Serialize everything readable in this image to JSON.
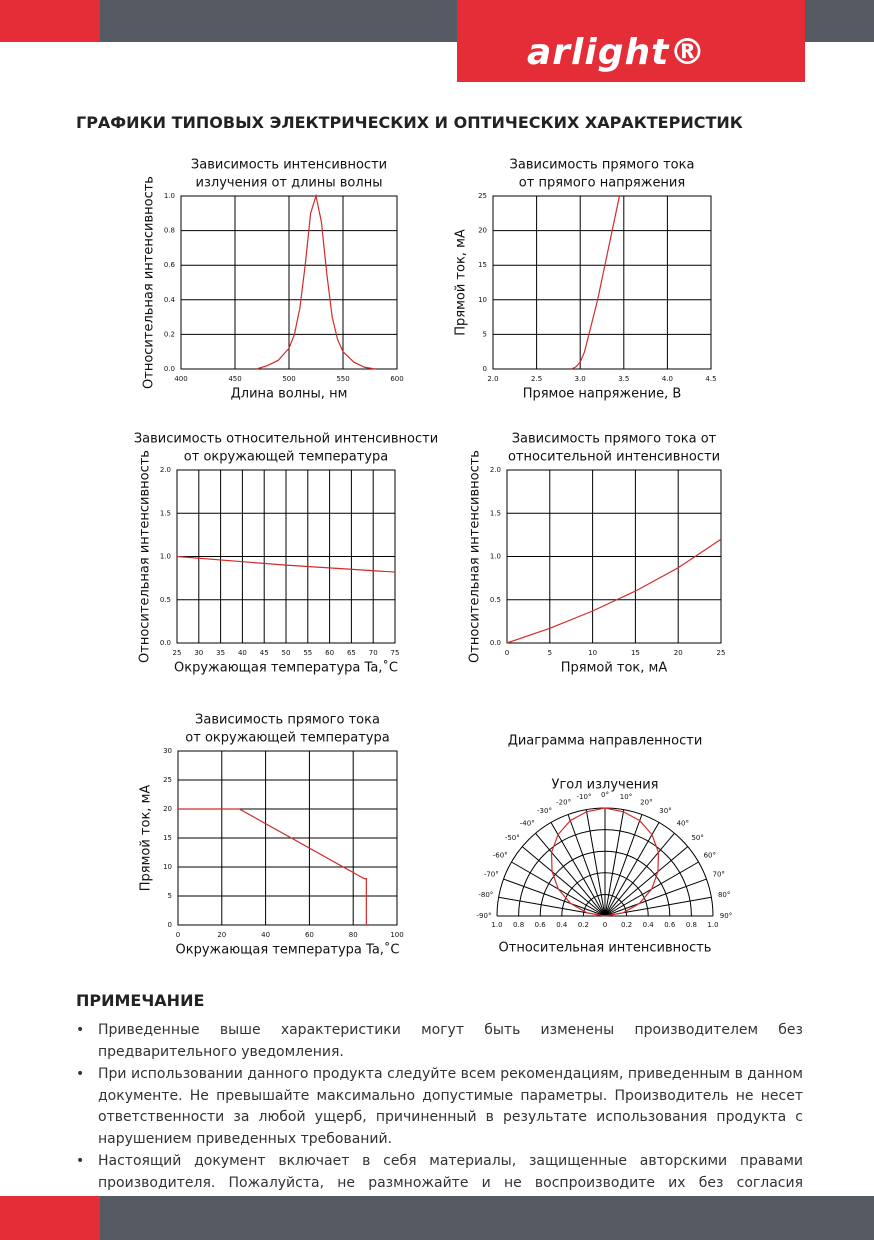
{
  "header": {
    "logo": "arlight®"
  },
  "section_title": "ГРАФИКИ ТИПОВЫХ ЭЛЕКТРИЧЕСКИХ И ОПТИЧЕСКИХ ХАРАКТЕРИСТИК",
  "chart_data": [
    {
      "type": "line",
      "title": [
        "Зависимость интенсивности",
        "излучения от длины волны"
      ],
      "x_label": "Длина волны, нм",
      "y_label": "Относительная интенсивность",
      "x": [
        470,
        480,
        490,
        500,
        505,
        510,
        515,
        520,
        525,
        530,
        535,
        540,
        545,
        550,
        560,
        570,
        580
      ],
      "series": [
        {
          "color": "#d42a2a",
          "values": [
            0,
            0.02,
            0.05,
            0.12,
            0.2,
            0.35,
            0.6,
            0.9,
            1.0,
            0.85,
            0.55,
            0.3,
            0.17,
            0.1,
            0.04,
            0.01,
            0
          ]
        }
      ],
      "xlim": [
        400,
        600
      ],
      "xticks": [
        400,
        450,
        500,
        550,
        600
      ],
      "ylim": [
        0,
        1
      ],
      "yticks": [
        {
          "value": 0,
          "label": "0.0"
        },
        0.2,
        0.4,
        0.6,
        0.8,
        {
          "value": 1,
          "label": "1.0"
        }
      ],
      "grid": true
    },
    {
      "type": "line",
      "title": [
        "Зависимость прямого тока",
        "от прямого напряжения"
      ],
      "x_label": "Прямое напряжение, В",
      "y_label": "Прямой ток, мА",
      "x": [
        2.9,
        2.95,
        3.0,
        3.05,
        3.1,
        3.2,
        3.3,
        3.4,
        3.45
      ],
      "series": [
        {
          "color": "#d42a2a",
          "values": [
            0,
            0.3,
            1,
            2.5,
            5,
            10,
            16,
            22,
            25
          ]
        }
      ],
      "xlim": [
        2,
        4.5
      ],
      "xticks": [
        {
          "value": 2,
          "label": "2.0"
        },
        2.5,
        {
          "value": 3,
          "label": "3.0"
        },
        3.5,
        {
          "value": 4,
          "label": "4.0"
        },
        4.5
      ],
      "ylim": [
        0,
        25
      ],
      "yticks": [
        0,
        5,
        10,
        15,
        20,
        25
      ],
      "grid": true
    },
    {
      "type": "line",
      "title": [
        "Зависимость относительной интенсивности",
        "от окружающей температура"
      ],
      "x_label": "Окружающая температура Ta,˚C",
      "y_label": "Относительная интенсивность",
      "x": [
        25,
        50,
        75
      ],
      "series": [
        {
          "color": "#d42a2a",
          "values": [
            1.0,
            0.9,
            0.82
          ]
        }
      ],
      "xlim": [
        25,
        75
      ],
      "xticks": [
        25,
        30,
        35,
        40,
        45,
        50,
        55,
        60,
        65,
        70,
        75
      ],
      "ylim": [
        0,
        2
      ],
      "yticks": [
        {
          "value": 0,
          "label": "0.0"
        },
        0.5,
        {
          "value": 1,
          "label": "1.0"
        },
        1.5,
        {
          "value": 2,
          "label": "2.0"
        }
      ],
      "grid": true
    },
    {
      "type": "line",
      "title": [
        "Зависимость прямого тока от",
        "относительной интенсивности"
      ],
      "x_label": "Прямой ток, мА",
      "y_label": "Относительная интенсивность",
      "x": [
        0,
        5,
        10,
        15,
        20,
        25
      ],
      "series": [
        {
          "color": "#d42a2a",
          "values": [
            0,
            0.17,
            0.37,
            0.6,
            0.87,
            1.2
          ]
        }
      ],
      "xlim": [
        0,
        25
      ],
      "xticks": [
        0,
        5,
        10,
        15,
        20,
        25
      ],
      "ylim": [
        0,
        2
      ],
      "yticks": [
        {
          "value": 0,
          "label": "0.0"
        },
        0.5,
        {
          "value": 1,
          "label": "1.0"
        },
        1.5,
        {
          "value": 2,
          "label": "2.0"
        }
      ],
      "grid": true
    },
    {
      "type": "line",
      "title": [
        "Зависимость прямого тока",
        "от окружающей температура"
      ],
      "x_label": "Окружающая температура Ta,˚C",
      "y_label": "Прямой ток, мА",
      "x": [
        0,
        28,
        85,
        86,
        86
      ],
      "series": [
        {
          "color": "#d42a2a",
          "values": [
            20,
            20,
            8,
            8,
            0
          ]
        }
      ],
      "xlim": [
        0,
        100
      ],
      "xticks": [
        0,
        20,
        40,
        60,
        80,
        100
      ],
      "ylim": [
        0,
        30
      ],
      "yticks": [
        0,
        5,
        10,
        15,
        20,
        25,
        30
      ],
      "grid": true
    },
    {
      "type": "polar",
      "title": [
        "Диаграмма направленности"
      ],
      "subtitle": "Угол излучения",
      "x_label": "Относительная интенсивность",
      "theta": [
        -90,
        -80,
        -70,
        -60,
        -50,
        -40,
        -30,
        -20,
        -10,
        0,
        10,
        20,
        30,
        40,
        50,
        60,
        70,
        80,
        90
      ],
      "series": [
        {
          "color": "#d42a2a",
          "values": [
            0,
            0.17,
            0.34,
            0.5,
            0.64,
            0.77,
            0.87,
            0.94,
            0.98,
            1,
            0.98,
            0.94,
            0.87,
            0.77,
            0.64,
            0.5,
            0.34,
            0.17,
            0
          ]
        }
      ],
      "thetaticks": [
        {
          "value": -90,
          "label": "-90°"
        },
        {
          "value": -80,
          "label": "-80°"
        },
        {
          "value": -70,
          "label": "-70°"
        },
        {
          "value": -60,
          "label": "-60°"
        },
        {
          "value": -50,
          "label": "-50°"
        },
        {
          "value": -40,
          "label": "-40°"
        },
        {
          "value": -30,
          "label": "-30°"
        },
        {
          "value": -20,
          "label": "-20°"
        },
        {
          "value": -10,
          "label": "-10°"
        },
        {
          "value": 0,
          "label": "0°"
        },
        {
          "value": 10,
          "label": "10°"
        },
        {
          "value": 20,
          "label": "20°"
        },
        {
          "value": 30,
          "label": "30°"
        },
        {
          "value": 40,
          "label": "40°"
        },
        {
          "value": 50,
          "label": "50°"
        },
        {
          "value": 60,
          "label": "60°"
        },
        {
          "value": 70,
          "label": "70°"
        },
        {
          "value": 80,
          "label": "80°"
        },
        {
          "value": 90,
          "label": "90°"
        }
      ],
      "rlim": [
        0,
        1
      ],
      "rticks": [
        0,
        0.2,
        0.4,
        0.6,
        0.8,
        {
          "value": 1,
          "label": "1.0"
        }
      ],
      "grid": true
    }
  ],
  "notes": {
    "title": "ПРИМЕЧАНИЕ",
    "items": [
      "Приведенные выше характеристики могут быть изменены производителем без предварительного уведомления.",
      "При использовании данного продукта следуйте всем рекомендациям, приведенным в данном документе. Не превышайте максимально допустимые параметры. Производитель не несет ответственности за любой ущерб, причиненный в результате использования продукта с нарушением приведенных требований.",
      "Настоящий документ включает в себя материалы, защищенные авторскими правами производителя. Пожалуйста, не размножайте и не воспроизводите их без согласия производителя."
    ]
  }
}
